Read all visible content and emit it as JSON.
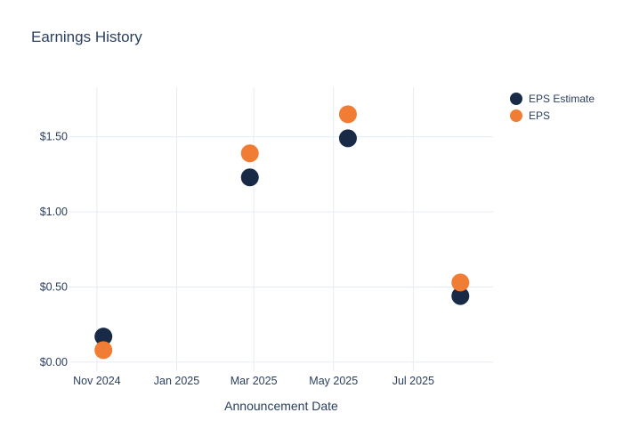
{
  "title": "Earnings History",
  "colors": {
    "text": "#2a3f5f",
    "grid": "#e6ecf5",
    "background": "#ffffff",
    "eps_estimate": "#182a45",
    "eps": "#f07d33"
  },
  "legend": {
    "items": [
      {
        "label": "EPS Estimate",
        "color": "#182a45"
      },
      {
        "label": "EPS",
        "color": "#f07d33"
      }
    ]
  },
  "chart_data": {
    "type": "scatter",
    "title": "Earnings History",
    "xlabel": "Announcement Date",
    "ylabel": "",
    "x": [
      "2024-11-06",
      "2025-02-26",
      "2025-05-12",
      "2025-08-06"
    ],
    "series": [
      {
        "name": "EPS Estimate",
        "color": "#182a45",
        "values": [
          0.17,
          1.23,
          1.49,
          0.44
        ]
      },
      {
        "name": "EPS",
        "color": "#f07d33",
        "values": [
          0.08,
          1.39,
          1.65,
          0.53
        ]
      }
    ],
    "xlim": [
      "2024-10-11",
      "2025-08-31"
    ],
    "ylim": [
      -0.06,
      1.83
    ],
    "x_ticks": [
      {
        "date": "2024-11-01",
        "label": "Nov 2024"
      },
      {
        "date": "2025-01-01",
        "label": "Jan 2025"
      },
      {
        "date": "2025-03-01",
        "label": "Mar 2025"
      },
      {
        "date": "2025-05-01",
        "label": "May 2025"
      },
      {
        "date": "2025-07-01",
        "label": "Jul 2025"
      }
    ],
    "y_ticks": [
      {
        "value": 0.0,
        "label": "$0.00"
      },
      {
        "value": 0.5,
        "label": "$0.50"
      },
      {
        "value": 1.0,
        "label": "$1.00"
      },
      {
        "value": 1.5,
        "label": "$1.50"
      }
    ],
    "grid": true,
    "legend_position": "outside-top-right",
    "marker_diameter_px": 20
  }
}
